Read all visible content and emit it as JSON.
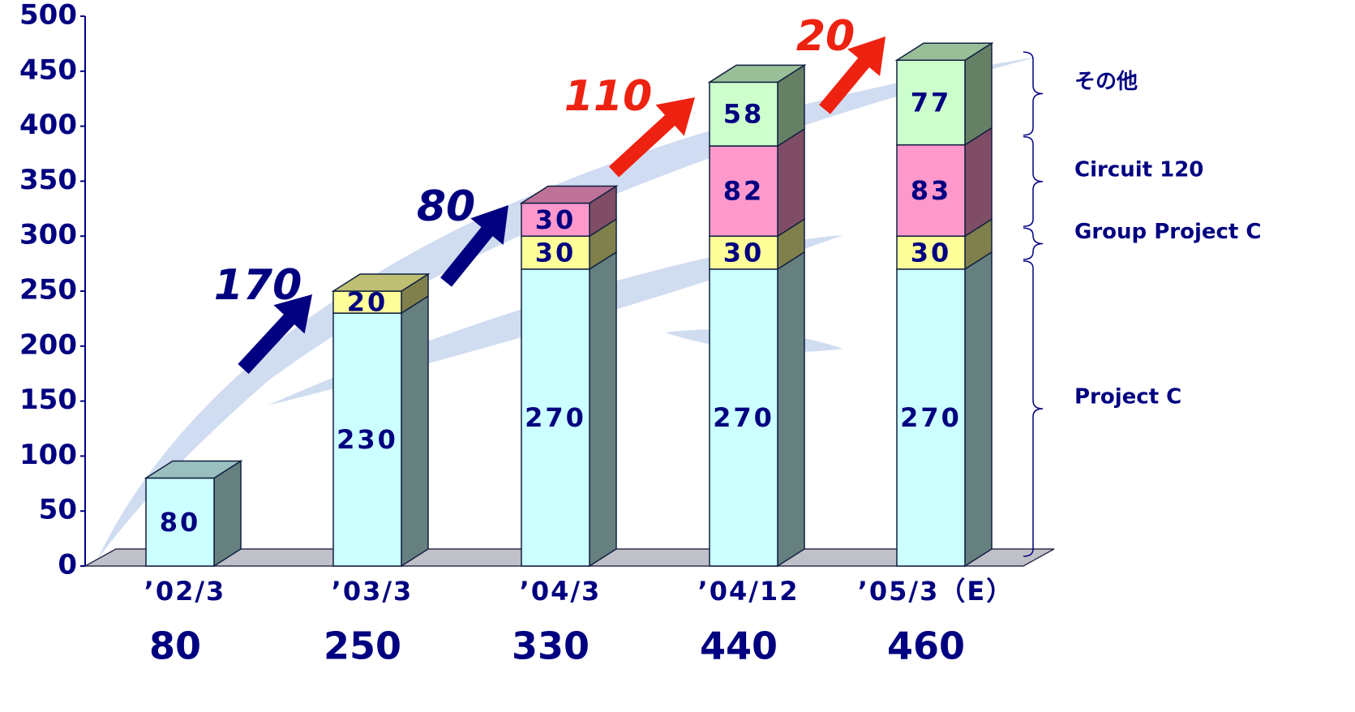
{
  "chart_data": {
    "type": "bar3d_stacked",
    "categories": [
      "’02/3",
      "’03/3",
      "’04/3",
      "’04/12",
      "’05/3（E）"
    ],
    "series": [
      {
        "name": "Project C",
        "color": "#ccffff",
        "values": [
          80,
          230,
          270,
          270,
          270
        ]
      },
      {
        "name": "Group Project C",
        "color": "#ffff99",
        "values": [
          null,
          20,
          30,
          30,
          30
        ]
      },
      {
        "name": "Circuit 120",
        "color": "#ff99cc",
        "values": [
          null,
          null,
          30,
          82,
          83
        ]
      },
      {
        "name": "その他",
        "color": "#ccffcc",
        "values": [
          null,
          null,
          null,
          58,
          77
        ]
      }
    ],
    "totals": [
      80,
      250,
      330,
      440,
      460
    ],
    "growth": {
      "values": [
        170,
        80,
        110,
        20
      ],
      "colors": [
        "#000080",
        "#000080",
        "#ee2211",
        "#ee2211"
      ]
    },
    "ylim": [
      0,
      500
    ],
    "yticks": [
      0,
      50,
      100,
      150,
      200,
      250,
      300,
      350,
      400,
      450,
      500
    ]
  }
}
